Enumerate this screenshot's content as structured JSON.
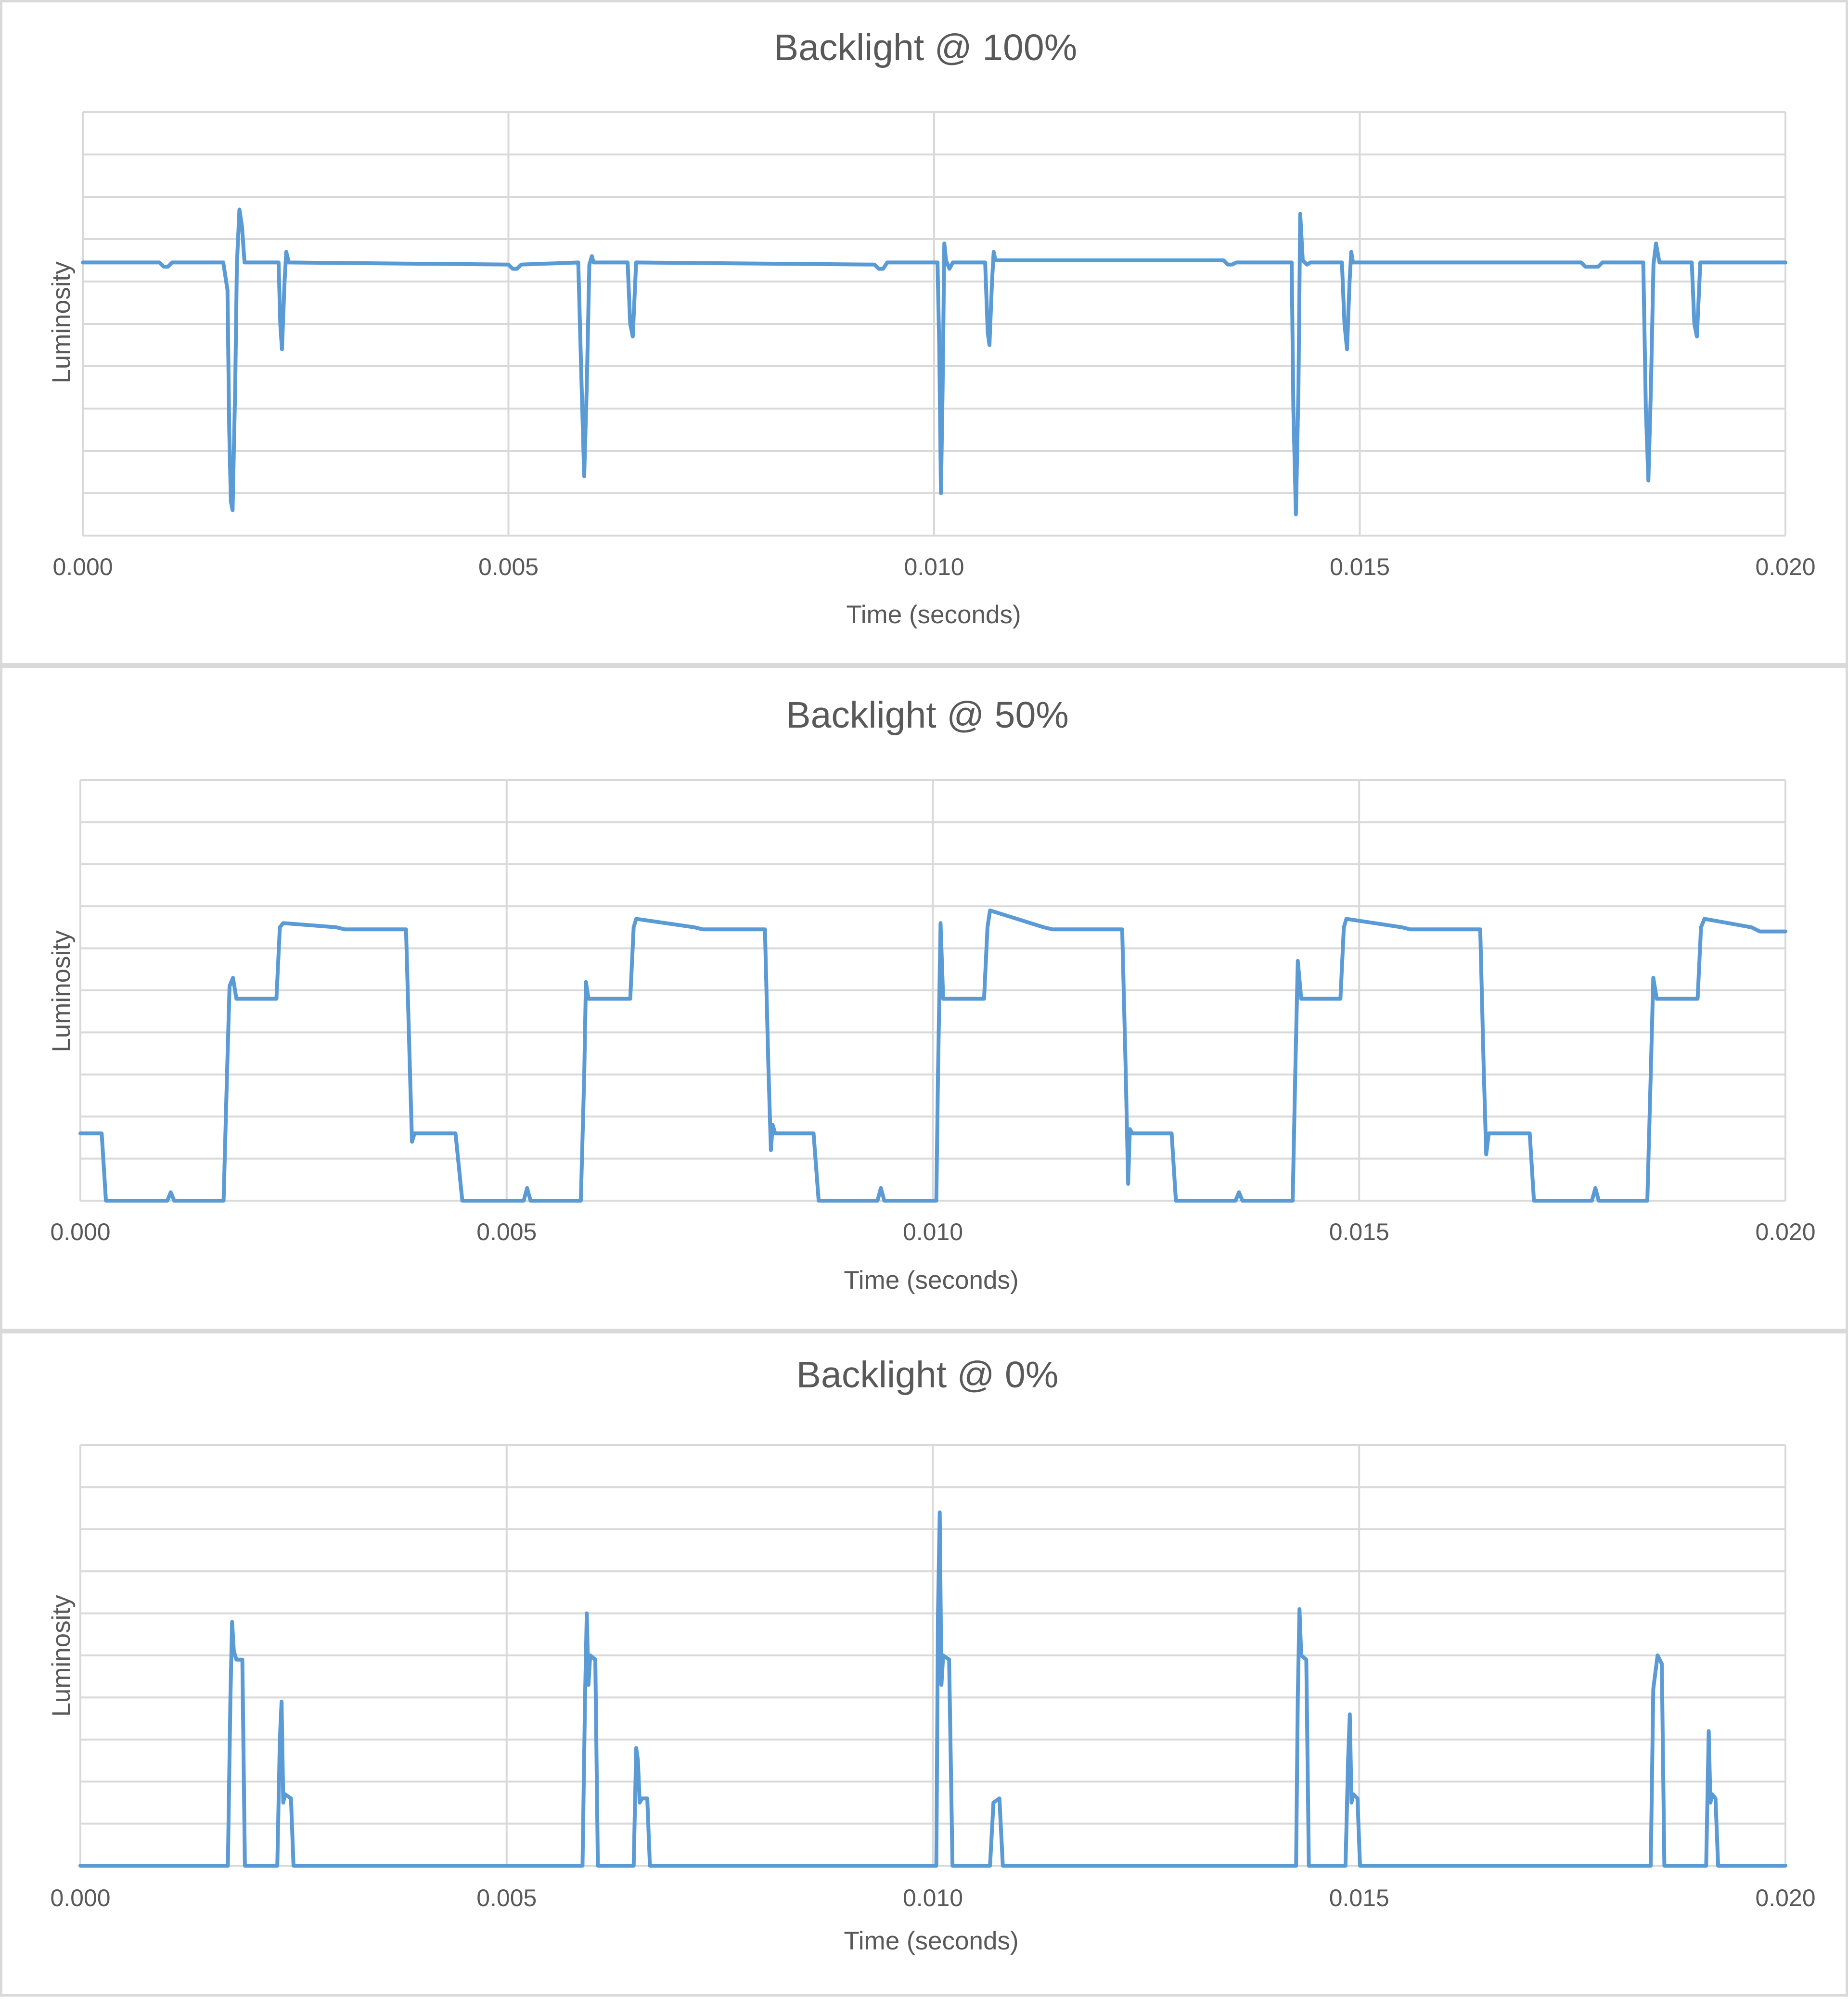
{
  "colors": {
    "series": "#5b9bd5",
    "grid": "#d9d9d9",
    "text": "#595959",
    "border": "#d9d9d9"
  },
  "chart_data": [
    {
      "type": "line",
      "title": "Backlight @ 100%",
      "xlabel": "Time (seconds)",
      "ylabel": "Luminosity",
      "xlim": [
        0.0,
        0.02
      ],
      "ylim": [
        0,
        10
      ],
      "x_ticks": [
        "0.000",
        "0.005",
        "0.010",
        "0.015",
        "0.020"
      ],
      "grid": true,
      "legend": "none",
      "series": [
        {
          "points": [
            [
              0.0,
              6.45
            ],
            [
              0.0009,
              6.45
            ],
            [
              0.00095,
              6.35
            ],
            [
              0.001,
              6.35
            ],
            [
              0.00105,
              6.45
            ],
            [
              0.00165,
              6.45
            ],
            [
              0.0017,
              5.8
            ],
            [
              0.00172,
              2.5
            ],
            [
              0.00174,
              0.8
            ],
            [
              0.00176,
              0.6
            ],
            [
              0.00179,
              3.5
            ],
            [
              0.00181,
              6.4
            ],
            [
              0.00184,
              7.7
            ],
            [
              0.00187,
              7.3
            ],
            [
              0.0019,
              6.45
            ],
            [
              0.0023,
              6.45
            ],
            [
              0.00232,
              5.0
            ],
            [
              0.00234,
              4.4
            ],
            [
              0.00237,
              6.0
            ],
            [
              0.00239,
              6.7
            ],
            [
              0.00242,
              6.45
            ],
            [
              0.005,
              6.4
            ],
            [
              0.00505,
              6.3
            ],
            [
              0.0051,
              6.3
            ],
            [
              0.00515,
              6.4
            ],
            [
              0.00582,
              6.45
            ],
            [
              0.00586,
              3.5
            ],
            [
              0.00589,
              1.4
            ],
            [
              0.00592,
              3.5
            ],
            [
              0.00595,
              6.4
            ],
            [
              0.00598,
              6.6
            ],
            [
              0.006,
              6.45
            ],
            [
              0.0064,
              6.45
            ],
            [
              0.00643,
              5.0
            ],
            [
              0.00646,
              4.7
            ],
            [
              0.0065,
              6.45
            ],
            [
              0.0093,
              6.4
            ],
            [
              0.00935,
              6.3
            ],
            [
              0.0094,
              6.3
            ],
            [
              0.00945,
              6.45
            ],
            [
              0.01004,
              6.45
            ],
            [
              0.01006,
              4.5
            ],
            [
              0.01008,
              1.0
            ],
            [
              0.0101,
              3.5
            ],
            [
              0.01012,
              6.9
            ],
            [
              0.01014,
              6.5
            ],
            [
              0.01018,
              6.3
            ],
            [
              0.01022,
              6.45
            ],
            [
              0.0106,
              6.45
            ],
            [
              0.01063,
              4.8
            ],
            [
              0.01065,
              4.5
            ],
            [
              0.01068,
              6.0
            ],
            [
              0.0107,
              6.7
            ],
            [
              0.01072,
              6.5
            ],
            [
              0.0134,
              6.5
            ],
            [
              0.01345,
              6.4
            ],
            [
              0.0135,
              6.4
            ],
            [
              0.01355,
              6.45
            ],
            [
              0.0142,
              6.45
            ],
            [
              0.01422,
              3.0
            ],
            [
              0.01425,
              0.5
            ],
            [
              0.01428,
              3.5
            ],
            [
              0.0143,
              7.6
            ],
            [
              0.01433,
              6.5
            ],
            [
              0.01438,
              6.4
            ],
            [
              0.01442,
              6.45
            ],
            [
              0.01479,
              6.45
            ],
            [
              0.01482,
              5.0
            ],
            [
              0.01485,
              4.4
            ],
            [
              0.01488,
              6.0
            ],
            [
              0.0149,
              6.7
            ],
            [
              0.01492,
              6.45
            ],
            [
              0.0176,
              6.45
            ],
            [
              0.01765,
              6.35
            ],
            [
              0.0178,
              6.35
            ],
            [
              0.01785,
              6.45
            ],
            [
              0.01833,
              6.45
            ],
            [
              0.01836,
              3.0
            ],
            [
              0.01839,
              1.3
            ],
            [
              0.01842,
              3.5
            ],
            [
              0.01845,
              6.4
            ],
            [
              0.01848,
              6.9
            ],
            [
              0.01852,
              6.45
            ],
            [
              0.0189,
              6.45
            ],
            [
              0.01893,
              5.0
            ],
            [
              0.01896,
              4.7
            ],
            [
              0.019,
              6.45
            ],
            [
              0.02,
              6.45
            ]
          ]
        }
      ]
    },
    {
      "type": "line",
      "title": "Backlight @ 50%",
      "xlabel": "Time (seconds)",
      "ylabel": "Luminosity",
      "xlim": [
        0.0,
        0.02
      ],
      "ylim": [
        0,
        10
      ],
      "x_ticks": [
        "0.000",
        "0.005",
        "0.010",
        "0.015",
        "0.020"
      ],
      "grid": true,
      "legend": "none",
      "series": [
        {
          "points": [
            [
              0.0,
              1.6
            ],
            [
              0.00025,
              1.6
            ],
            [
              0.0003,
              0.0
            ],
            [
              0.00102,
              0.0
            ],
            [
              0.00106,
              0.2
            ],
            [
              0.0011,
              0.0
            ],
            [
              0.00168,
              0.0
            ],
            [
              0.00172,
              3.0
            ],
            [
              0.00175,
              5.1
            ],
            [
              0.00179,
              5.3
            ],
            [
              0.00183,
              4.8
            ],
            [
              0.0023,
              4.8
            ],
            [
              0.00234,
              6.5
            ],
            [
              0.00238,
              6.6
            ],
            [
              0.003,
              6.5
            ],
            [
              0.0031,
              6.45
            ],
            [
              0.00382,
              6.45
            ],
            [
              0.00386,
              3.5
            ],
            [
              0.00389,
              1.4
            ],
            [
              0.00392,
              1.6
            ],
            [
              0.0044,
              1.6
            ],
            [
              0.00448,
              0.0
            ],
            [
              0.0052,
              0.0
            ],
            [
              0.00524,
              0.3
            ],
            [
              0.00528,
              0.0
            ],
            [
              0.00587,
              0.0
            ],
            [
              0.00591,
              3.0
            ],
            [
              0.00593,
              5.2
            ],
            [
              0.00596,
              4.8
            ],
            [
              0.00645,
              4.8
            ],
            [
              0.00649,
              6.5
            ],
            [
              0.00652,
              6.7
            ],
            [
              0.0072,
              6.5
            ],
            [
              0.0073,
              6.45
            ],
            [
              0.00803,
              6.45
            ],
            [
              0.00807,
              3.2
            ],
            [
              0.0081,
              1.2
            ],
            [
              0.00812,
              1.8
            ],
            [
              0.00815,
              1.6
            ],
            [
              0.0086,
              1.6
            ],
            [
              0.00866,
              0.0
            ],
            [
              0.00935,
              0.0
            ],
            [
              0.00939,
              0.3
            ],
            [
              0.00943,
              0.0
            ],
            [
              0.01004,
              0.0
            ],
            [
              0.01006,
              3.0
            ],
            [
              0.01009,
              6.6
            ],
            [
              0.01012,
              4.8
            ],
            [
              0.0106,
              4.8
            ],
            [
              0.01064,
              6.5
            ],
            [
              0.01067,
              6.9
            ],
            [
              0.0113,
              6.5
            ],
            [
              0.0114,
              6.45
            ],
            [
              0.01222,
              6.45
            ],
            [
              0.01226,
              3.2
            ],
            [
              0.01229,
              0.4
            ],
            [
              0.01231,
              1.7
            ],
            [
              0.01234,
              1.6
            ],
            [
              0.0128,
              1.6
            ],
            [
              0.01285,
              0.0
            ],
            [
              0.01355,
              0.0
            ],
            [
              0.01359,
              0.2
            ],
            [
              0.01363,
              0.0
            ],
            [
              0.01422,
              0.0
            ],
            [
              0.01425,
              3.0
            ],
            [
              0.01428,
              5.7
            ],
            [
              0.01432,
              4.8
            ],
            [
              0.01478,
              4.8
            ],
            [
              0.01482,
              6.5
            ],
            [
              0.01485,
              6.7
            ],
            [
              0.0155,
              6.5
            ],
            [
              0.0156,
              6.45
            ],
            [
              0.01642,
              6.45
            ],
            [
              0.01646,
              3.2
            ],
            [
              0.01649,
              1.1
            ],
            [
              0.01652,
              1.6
            ],
            [
              0.017,
              1.6
            ],
            [
              0.01705,
              0.0
            ],
            [
              0.01773,
              0.0
            ],
            [
              0.01777,
              0.3
            ],
            [
              0.01781,
              0.0
            ],
            [
              0.01838,
              0.0
            ],
            [
              0.01842,
              3.0
            ],
            [
              0.01845,
              5.3
            ],
            [
              0.01849,
              4.8
            ],
            [
              0.01897,
              4.8
            ],
            [
              0.01901,
              6.5
            ],
            [
              0.01905,
              6.7
            ],
            [
              0.0196,
              6.5
            ],
            [
              0.0197,
              6.4
            ],
            [
              0.02,
              6.4
            ]
          ]
        }
      ]
    },
    {
      "type": "line",
      "title": "Backlight @ 0%",
      "xlabel": "Time (seconds)",
      "ylabel": "Luminosity",
      "xlim": [
        0.0,
        0.02
      ],
      "ylim": [
        0,
        10
      ],
      "x_ticks": [
        "0.000",
        "0.005",
        "0.010",
        "0.015",
        "0.020"
      ],
      "grid": true,
      "legend": "none",
      "series": [
        {
          "points": [
            [
              0.0,
              0.0
            ],
            [
              0.00173,
              0.0
            ],
            [
              0.00176,
              4.0
            ],
            [
              0.00178,
              5.8
            ],
            [
              0.0018,
              5.1
            ],
            [
              0.00183,
              4.9
            ],
            [
              0.0019,
              4.9
            ],
            [
              0.00193,
              0.0
            ],
            [
              0.00231,
              0.0
            ],
            [
              0.00234,
              3.0
            ],
            [
              0.00236,
              3.9
            ],
            [
              0.00238,
              1.5
            ],
            [
              0.0024,
              1.7
            ],
            [
              0.00247,
              1.6
            ],
            [
              0.0025,
              0.0
            ],
            [
              0.00589,
              0.0
            ],
            [
              0.00592,
              4.0
            ],
            [
              0.00594,
              6.0
            ],
            [
              0.00596,
              4.3
            ],
            [
              0.00598,
              5.0
            ],
            [
              0.00604,
              4.9
            ],
            [
              0.00607,
              0.0
            ],
            [
              0.00649,
              0.0
            ],
            [
              0.00652,
              2.8
            ],
            [
              0.00654,
              2.5
            ],
            [
              0.00656,
              1.5
            ],
            [
              0.00659,
              1.6
            ],
            [
              0.00665,
              1.6
            ],
            [
              0.00668,
              0.0
            ],
            [
              0.01004,
              0.0
            ],
            [
              0.01006,
              6.0
            ],
            [
              0.01008,
              8.4
            ],
            [
              0.0101,
              4.3
            ],
            [
              0.01012,
              5.0
            ],
            [
              0.01019,
              4.9
            ],
            [
              0.01023,
              0.0
            ],
            [
              0.01067,
              0.0
            ],
            [
              0.01071,
              1.5
            ],
            [
              0.01078,
              1.6
            ],
            [
              0.01082,
              0.0
            ],
            [
              0.01426,
              0.0
            ],
            [
              0.01428,
              4.0
            ],
            [
              0.0143,
              6.1
            ],
            [
              0.01432,
              5.0
            ],
            [
              0.01438,
              4.9
            ],
            [
              0.01441,
              0.0
            ],
            [
              0.01484,
              0.0
            ],
            [
              0.01487,
              2.5
            ],
            [
              0.01489,
              3.6
            ],
            [
              0.01491,
              1.5
            ],
            [
              0.01493,
              1.7
            ],
            [
              0.01498,
              1.6
            ],
            [
              0.01501,
              0.0
            ],
            [
              0.01842,
              0.0
            ],
            [
              0.01845,
              4.2
            ],
            [
              0.0185,
              5.0
            ],
            [
              0.01855,
              4.8
            ],
            [
              0.01858,
              0.0
            ],
            [
              0.01907,
              0.0
            ],
            [
              0.0191,
              3.2
            ],
            [
              0.01912,
              1.5
            ],
            [
              0.01914,
              1.7
            ],
            [
              0.01918,
              1.6
            ],
            [
              0.01921,
              0.0
            ],
            [
              0.02,
              0.0
            ]
          ]
        }
      ]
    }
  ]
}
